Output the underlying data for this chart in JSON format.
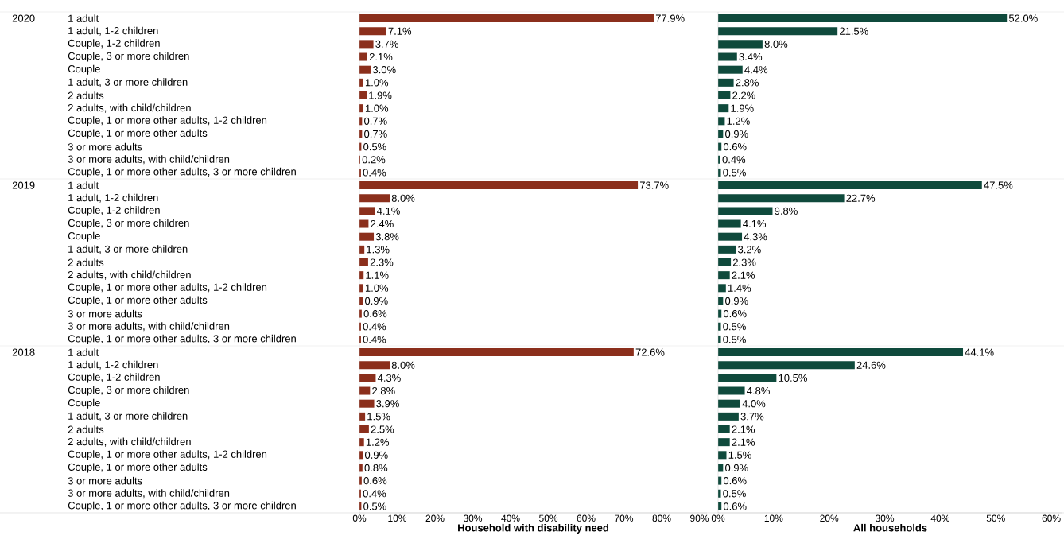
{
  "chart_data": [
    {
      "type": "bar",
      "orientation": "horizontal",
      "xlabel": "Household with disability need",
      "annotations": [
        "2020",
        "2019",
        "2018"
      ],
      "categories": [
        "1 adult",
        "1 adult, 1-2 children",
        "Couple, 1-2 children",
        "Couple, 3 or more children",
        "Couple",
        "1 adult, 3 or more children",
        "2 adults",
        "2 adults, with child/children",
        "Couple, 1 or more other adults, 1-2 children",
        "Couple, 1 or more other adults",
        "3 or more adults",
        "3 or more adults, with child/children",
        "Couple, 1 or more other adults, 3 or more children",
        "1 adult",
        "1 adult, 1-2 children",
        "Couple, 1-2 children",
        "Couple, 3 or more children",
        "Couple",
        "1 adult, 3 or more children",
        "2 adults",
        "2 adults, with child/children",
        "Couple, 1 or more other adults, 1-2 children",
        "Couple, 1 or more other adults",
        "3 or more adults",
        "3 or more adults, with child/children",
        "Couple, 1 or more other adults, 3 or more children",
        "1 adult",
        "1 adult, 1-2 children",
        "Couple, 1-2 children",
        "Couple, 3 or more children",
        "Couple",
        "1 adult, 3 or more children",
        "2 adults",
        "2 adults, with child/children",
        "Couple, 1 or more other adults, 1-2 children",
        "Couple, 1 or more other adults",
        "3 or more adults",
        "3 or more adults, with child/children",
        "Couple, 1 or more other adults, 3 or more children"
      ],
      "values": [
        77.9,
        7.1,
        3.7,
        2.1,
        3.0,
        1.0,
        1.9,
        1.0,
        0.7,
        0.7,
        0.5,
        0.2,
        0.4,
        73.7,
        8.0,
        4.1,
        2.4,
        3.8,
        1.3,
        2.3,
        1.1,
        1.0,
        0.9,
        0.6,
        0.4,
        0.4,
        72.6,
        8.0,
        4.3,
        2.8,
        3.9,
        1.5,
        2.5,
        1.2,
        0.9,
        0.8,
        0.6,
        0.4,
        0.5
      ],
      "value_labels": [
        "77.9%",
        "7.1%",
        "3.7%",
        "2.1%",
        "3.0%",
        "1.0%",
        "1.9%",
        "1.0%",
        "0.7%",
        "0.7%",
        "0.5%",
        "0.2%",
        "0.4%",
        "73.7%",
        "8.0%",
        "4.1%",
        "2.4%",
        "3.8%",
        "1.3%",
        "2.3%",
        "1.1%",
        "1.0%",
        "0.9%",
        "0.6%",
        "0.4%",
        "0.4%",
        "72.6%",
        "8.0%",
        "4.3%",
        "2.8%",
        "3.9%",
        "1.5%",
        "2.5%",
        "1.2%",
        "0.9%",
        "0.8%",
        "0.6%",
        "0.4%",
        "0.5%"
      ],
      "color": "#8b2f1c",
      "xlim": [
        0,
        92
      ],
      "xticks": [
        {
          "value": 0,
          "label": "0%"
        },
        {
          "value": 10,
          "label": "10%"
        },
        {
          "value": 20,
          "label": "20%"
        },
        {
          "value": 30,
          "label": "30%"
        },
        {
          "value": 40,
          "label": "40%"
        },
        {
          "value": 50,
          "label": "50%"
        },
        {
          "value": 60,
          "label": "60%"
        },
        {
          "value": 70,
          "label": "70%"
        },
        {
          "value": 80,
          "label": "80%"
        },
        {
          "value": 90,
          "label": "90%"
        }
      ]
    },
    {
      "type": "bar",
      "orientation": "horizontal",
      "xlabel": "All households",
      "tick_labels": "x",
      "categories": [
        null,
        null,
        null,
        null,
        null,
        null,
        null,
        null,
        null,
        null,
        null,
        null,
        null,
        null,
        null,
        null,
        null,
        null,
        null,
        null,
        null,
        null,
        null,
        null,
        null,
        null,
        null,
        null,
        null,
        null,
        null,
        null,
        null,
        null,
        null,
        null,
        null,
        null,
        null
      ],
      "values": [
        52.0,
        21.5,
        8.0,
        3.4,
        4.4,
        2.8,
        2.2,
        1.9,
        1.2,
        0.9,
        0.6,
        0.4,
        0.5,
        47.5,
        22.7,
        9.8,
        4.1,
        4.3,
        3.2,
        2.3,
        2.1,
        1.4,
        0.9,
        0.6,
        0.5,
        0.5,
        44.1,
        24.6,
        10.5,
        4.8,
        4.0,
        3.7,
        2.1,
        2.1,
        1.5,
        0.9,
        0.6,
        0.5,
        0.6
      ],
      "value_labels": [
        "52.0%",
        "21.5%",
        "8.0%",
        "3.4%",
        "4.4%",
        "2.8%",
        "2.2%",
        "1.9%",
        "1.2%",
        "0.9%",
        "0.6%",
        "0.4%",
        "0.5%",
        "47.5%",
        "22.7%",
        "9.8%",
        "4.1%",
        "4.3%",
        "3.2%",
        "2.3%",
        "2.1%",
        "1.4%",
        "0.9%",
        "0.6%",
        "0.5%",
        "0.5%",
        "44.1%",
        "24.6%",
        "10.5%",
        "4.8%",
        "4.0%",
        "3.7%",
        "2.1%",
        "2.1%",
        "1.5%",
        "0.9%",
        "0.6%",
        "0.5%",
        "0.6%"
      ],
      "color": "#0f4a3c",
      "xlim": [
        0,
        62
      ],
      "xticks": [
        {
          "value": 0,
          "label": "0%"
        },
        {
          "value": 10,
          "label": "10%"
        },
        {
          "value": 20,
          "label": "20%"
        },
        {
          "value": 30,
          "label": "30%"
        },
        {
          "value": 40,
          "label": "40%"
        },
        {
          "value": 50,
          "label": "50%"
        },
        {
          "value": 60,
          "label": "60%"
        }
      ]
    }
  ]
}
